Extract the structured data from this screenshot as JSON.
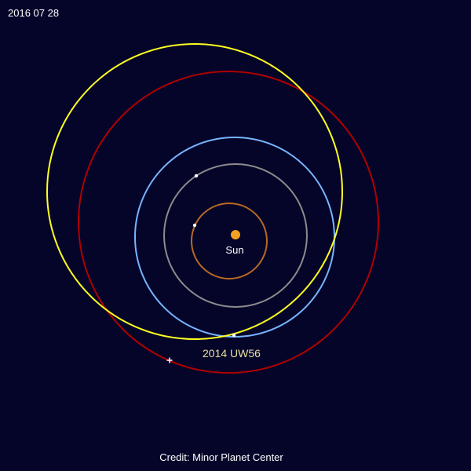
{
  "date_label": "2016 07 28",
  "sun_label": "Sun",
  "object_label": "2014 UW56",
  "credit": "Credit: Minor Planet Center",
  "colors": {
    "background": "#05052a",
    "sun": "#f4a020",
    "mercury_orbit": "#b86a22",
    "venus_orbit": "#8c8c8c",
    "earth_orbit": "#78b4ff",
    "mars_orbit": "#b00000",
    "object_orbit": "#ffff20",
    "object_label": "#e8e0a0",
    "text": "#ffffff",
    "planet_marker": "#ffffff"
  }
}
